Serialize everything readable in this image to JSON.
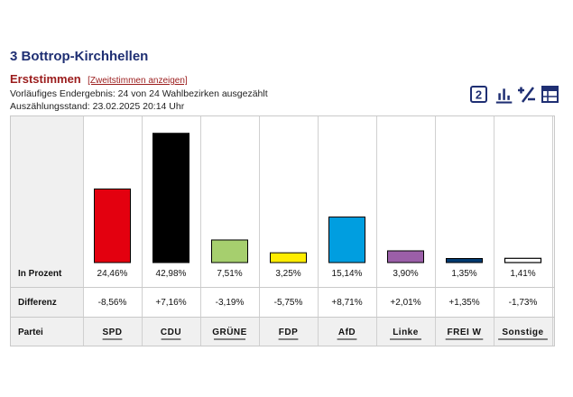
{
  "header": {
    "title": "3 Bottrop-Kirchhellen",
    "vote_type": "Erststimmen",
    "toggle_link": "[Zweitstimmen anzeigen]",
    "status": "Vorläufiges Endergebnis: 24 von 24 Wahlbezirken ausgezählt",
    "timestamp": "Auszählungsstand: 23.02.2025 20:14 Uhr"
  },
  "toolbar": {
    "icons": [
      "number-2-icon",
      "bar-chart-icon",
      "percent-diff-icon",
      "table-icon"
    ],
    "badge_text": "2",
    "accent": "#1f2f73"
  },
  "chart_data": {
    "type": "bar",
    "categories": [
      "SPD",
      "CDU",
      "GRÜNE",
      "FDP",
      "AfD",
      "Linke",
      "FREI W",
      "Sonstige"
    ],
    "values": [
      24.46,
      42.98,
      7.51,
      3.25,
      15.14,
      3.9,
      1.35,
      1.41
    ],
    "value_labels": [
      "24,46%",
      "42,98%",
      "7,51%",
      "3,25%",
      "15,14%",
      "3,90%",
      "1,35%",
      "1,41%"
    ],
    "differences": [
      "-8,56%",
      "+7,16%",
      "-3,19%",
      "-5,75%",
      "+8,71%",
      "+2,01%",
      "+1,35%",
      "-1,73%"
    ],
    "colors": [
      "#e3000f",
      "#000000",
      "#a6cf6e",
      "#ffed00",
      "#009ee0",
      "#9b5fa8",
      "#003a70",
      "#ffffff"
    ],
    "ylim": [
      0,
      45
    ],
    "row_labels": {
      "percent": "In Prozent",
      "difference": "Differenz",
      "party": "Partei"
    }
  }
}
